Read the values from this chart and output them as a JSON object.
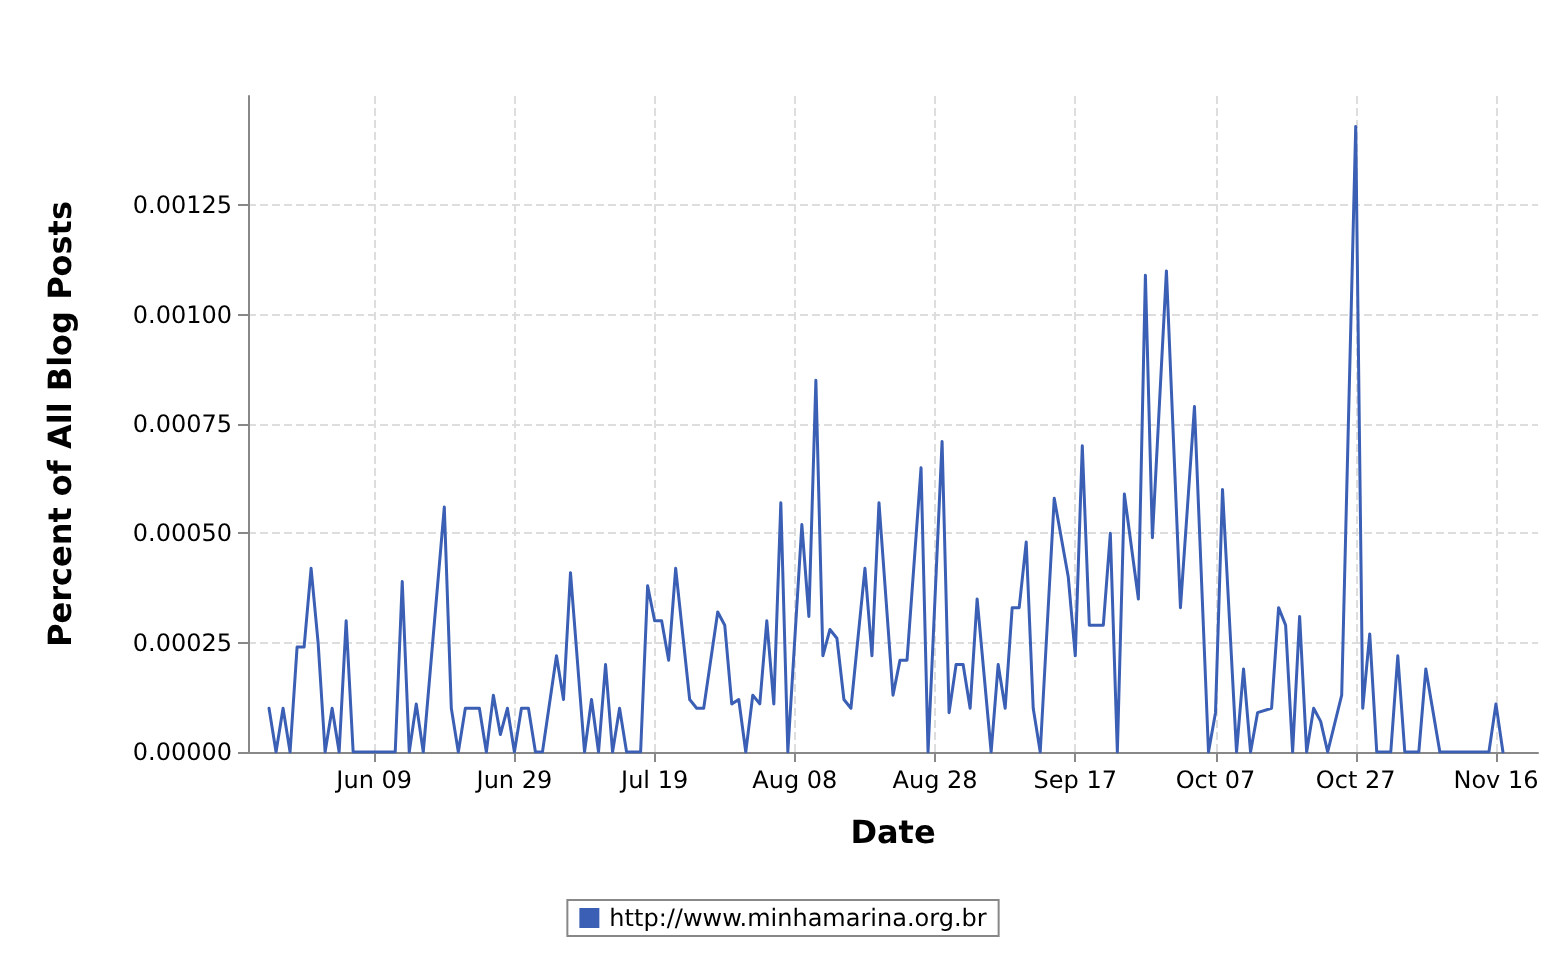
{
  "chart_data": {
    "type": "line",
    "xlabel": "Date",
    "ylabel": "Percent of All Blog Posts",
    "x": [
      "--05-25",
      "--05-26",
      "--05-27",
      "--05-28",
      "--05-29",
      "--05-30",
      "--05-31",
      "--06-01",
      "--06-02",
      "--06-03",
      "--06-04",
      "--06-05",
      "--06-06",
      "--06-12",
      "--06-13",
      "--06-14",
      "--06-15",
      "--06-16",
      "--06-19",
      "--06-20",
      "--06-21",
      "--06-22",
      "--06-24",
      "--06-25",
      "--06-26",
      "--06-27",
      "--06-28",
      "--06-29",
      "--06-30",
      "--07-01",
      "--07-02",
      "--07-03",
      "--07-05",
      "--07-06",
      "--07-07",
      "--07-09",
      "--07-10",
      "--07-11",
      "--07-12",
      "--07-13",
      "--07-14",
      "--07-15",
      "--07-17",
      "--07-18",
      "--07-19",
      "--07-20",
      "--07-21",
      "--07-22",
      "--07-24",
      "--07-25",
      "--07-26",
      "--07-28",
      "--07-29",
      "--07-30",
      "--07-31",
      "--08-01",
      "--08-02",
      "--08-03",
      "--08-04",
      "--08-05",
      "--08-06",
      "--08-07",
      "--08-09",
      "--08-10",
      "--08-11",
      "--08-12",
      "--08-13",
      "--08-14",
      "--08-15",
      "--08-16",
      "--08-18",
      "--08-19",
      "--08-20",
      "--08-22",
      "--08-23",
      "--08-24",
      "--08-26",
      "--08-27",
      "--08-29",
      "--08-30",
      "--08-31",
      "--09-01",
      "--09-02",
      "--09-03",
      "--09-05",
      "--09-06",
      "--09-07",
      "--09-08",
      "--09-09",
      "--09-10",
      "--09-11",
      "--09-12",
      "--09-14",
      "--09-16",
      "--09-17",
      "--09-18",
      "--09-19",
      "--09-21",
      "--09-22",
      "--09-23",
      "--09-24",
      "--09-26",
      "--09-27",
      "--09-28",
      "--09-30",
      "--10-02",
      "--10-04",
      "--10-06",
      "--10-07",
      "--10-08",
      "--10-10",
      "--10-11",
      "--10-12",
      "--10-13",
      "--10-15",
      "--10-16",
      "--10-17",
      "--10-18",
      "--10-19",
      "--10-20",
      "--10-21",
      "--10-22",
      "--10-23",
      "--10-25",
      "--10-27",
      "--10-28",
      "--10-29",
      "--10-30",
      "--11-01",
      "--11-02",
      "--11-03",
      "--11-05",
      "--11-06",
      "--11-08",
      "--11-15",
      "--11-16",
      "--11-17"
    ],
    "series": [
      {
        "name": "http://www.minhamarina.org.br",
        "color": "#3a5fb4",
        "values": [
          0.0001,
          0,
          0.0001,
          0,
          0.00024,
          0.00024,
          0.00042,
          0.00025,
          0,
          0.0001,
          0,
          0.0003,
          0,
          0,
          0.00039,
          0,
          0.00011,
          0,
          0.00056,
          0.0001,
          0,
          0.0001,
          0.0001,
          0,
          0.00013,
          4e-05,
          0.0001,
          0,
          0.0001,
          0.0001,
          0,
          0,
          0.00022,
          0.00012,
          0.00041,
          0,
          0.00012,
          0,
          0.0002,
          0,
          0.0001,
          0,
          0,
          0.00038,
          0.0003,
          0.0003,
          0.00021,
          0.00042,
          0.00012,
          0.0001,
          0.0001,
          0.00032,
          0.00029,
          0.00011,
          0.00012,
          0,
          0.00013,
          0.00011,
          0.0003,
          0.00011,
          0.00057,
          0,
          0.00052,
          0.00031,
          0.00085,
          0.00022,
          0.00028,
          0.00026,
          0.00012,
          0.0001,
          0.00042,
          0.00022,
          0.00057,
          0.00013,
          0.00021,
          0.00021,
          0.00065,
          0,
          0.00071,
          9e-05,
          0.0002,
          0.0002,
          0.0001,
          0.00035,
          0,
          0.0002,
          0.0001,
          0.00033,
          0.00033,
          0.00048,
          0.0001,
          0,
          0.00058,
          0.0004,
          0.00022,
          0.0007,
          0.00029,
          0.00029,
          0.0005,
          0,
          0.00059,
          0.00035,
          0.00109,
          0.00049,
          0.0011,
          0.00033,
          0.00079,
          0,
          9e-05,
          0.0006,
          0,
          0.00019,
          0,
          9e-05,
          0.0001,
          0.00033,
          0.00029,
          0,
          0.00031,
          0,
          0.0001,
          7e-05,
          0,
          0.00013,
          0.00143,
          0.0001,
          0.00027,
          0,
          0,
          0.00022,
          0,
          0,
          0.00019,
          0,
          0,
          0.00011,
          0
        ]
      }
    ],
    "xlim": [
      "--05-22",
      "--11-22"
    ],
    "xticks": [
      {
        "value": "--06-09",
        "label": "Jun 09"
      },
      {
        "value": "--06-29",
        "label": "Jun 29"
      },
      {
        "value": "--07-19",
        "label": "Jul 19"
      },
      {
        "value": "--08-08",
        "label": "Aug 08"
      },
      {
        "value": "--08-28",
        "label": "Aug 28"
      },
      {
        "value": "--09-17",
        "label": "Sep 17"
      },
      {
        "value": "--10-07",
        "label": "Oct 07"
      },
      {
        "value": "--10-27",
        "label": "Oct 27"
      },
      {
        "value": "--11-16",
        "label": "Nov 16"
      }
    ],
    "ylim": [
      0,
      0.0015
    ],
    "yticks": [
      {
        "value": 0,
        "label": "0.00000"
      },
      {
        "value": 0.00025,
        "label": "0.00025"
      },
      {
        "value": 0.0005,
        "label": "0.00050"
      },
      {
        "value": 0.00075,
        "label": "0.00075"
      },
      {
        "value": 0.001,
        "label": "0.00100"
      },
      {
        "value": 0.00125,
        "label": "0.00125"
      }
    ],
    "grid": true,
    "legend": "bottom",
    "marker": "none",
    "line_style": "solid"
  }
}
